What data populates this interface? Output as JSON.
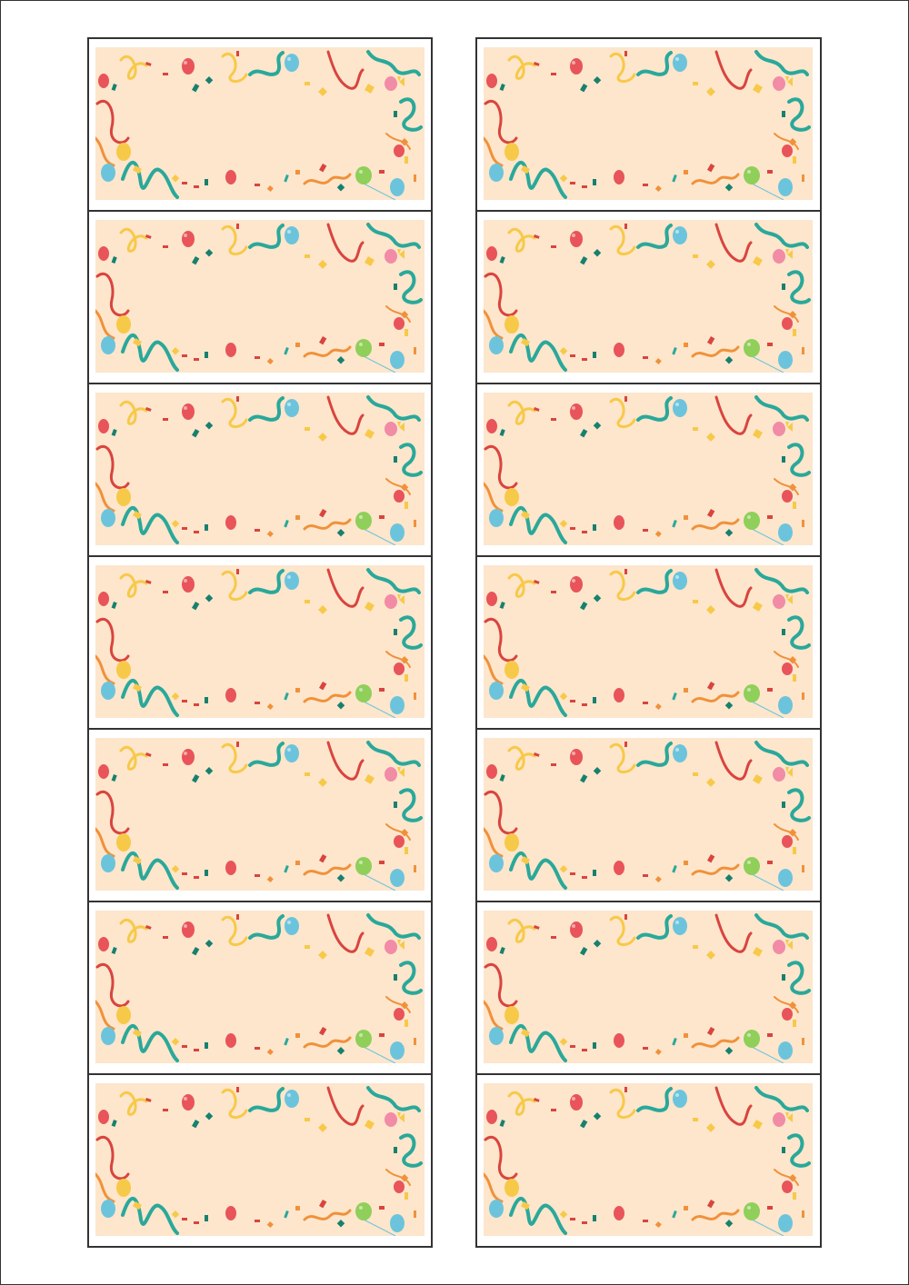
{
  "sheet": {
    "columns": 2,
    "rows": 7,
    "label_style": "party-confetti-balloons",
    "colors": {
      "background": "#fde6cc",
      "teal": "#2aa89a",
      "dark_teal": "#17806e",
      "red": "#e8545a",
      "ribbon_red": "#d9443f",
      "yellow": "#f7c948",
      "orange": "#f0913a",
      "blue": "#6cc4dc",
      "green": "#8fcf5a",
      "pink": "#f28ba6",
      "border": "#333333"
    }
  }
}
